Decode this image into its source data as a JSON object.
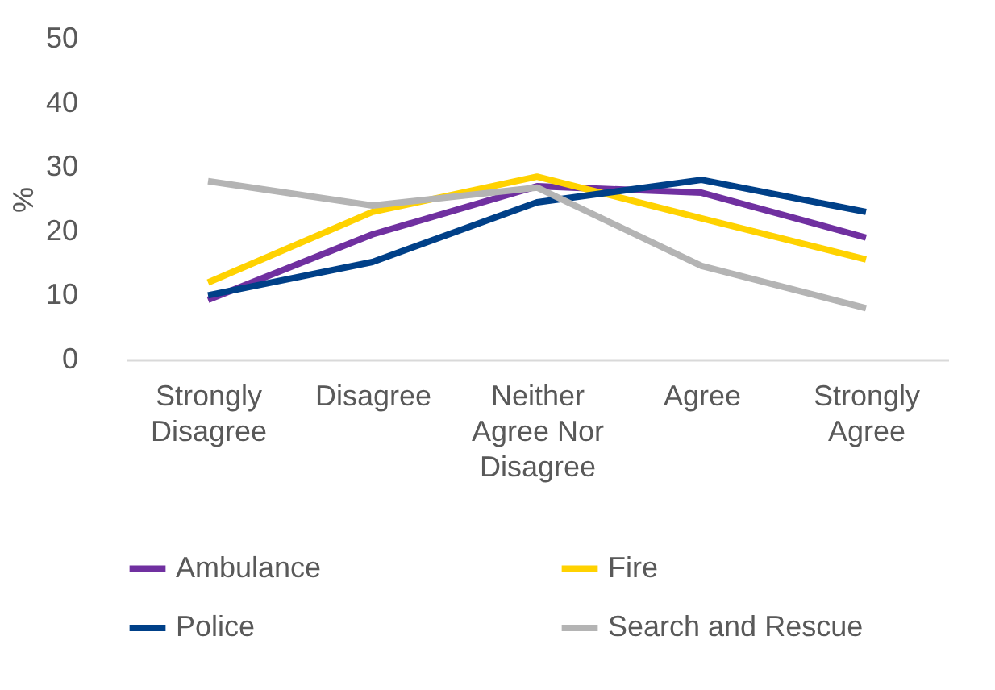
{
  "chart_data": {
    "type": "line",
    "ylabel": "%",
    "categories": [
      "Strongly Disagree",
      "Disagree",
      "Neither Agree Nor Disagree",
      "Agree",
      "Strongly Agree"
    ],
    "series": [
      {
        "name": "Ambulance",
        "color": "#7030a0",
        "values": [
          9.3,
          19.5,
          27,
          26,
          19
        ]
      },
      {
        "name": "Fire",
        "color": "#ffd200",
        "values": [
          12,
          23,
          28.5,
          22,
          15.6
        ]
      },
      {
        "name": "Police",
        "color": "#004088",
        "values": [
          10,
          15.2,
          24.5,
          28,
          23
        ]
      },
      {
        "name": "Search and Rescue",
        "color": "#b4b4b4",
        "values": [
          27.8,
          24,
          26.8,
          14.6,
          8
        ]
      }
    ],
    "ylim": [
      0,
      50
    ],
    "yticks": [
      0,
      10,
      20,
      30,
      40,
      50
    ],
    "grid": false,
    "legend": "bottom",
    "marker": "none",
    "line_style": "solid"
  }
}
